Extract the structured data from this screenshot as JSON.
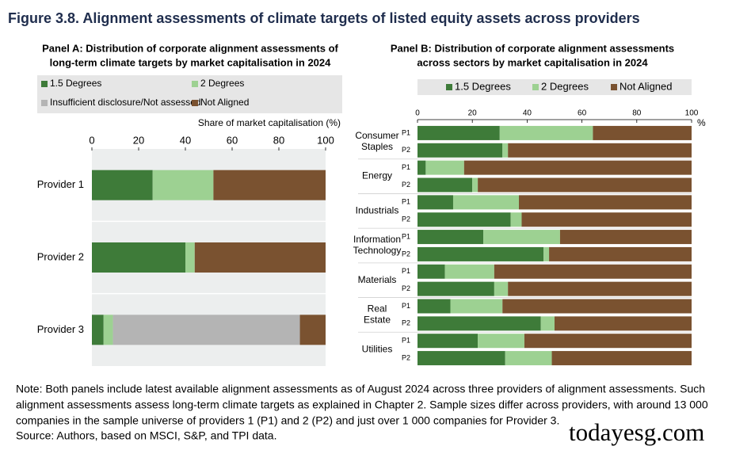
{
  "figure_title": "Figure  3.8. Alignment assessments of climate targets of listed equity assets across providers",
  "chart_data": [
    {
      "type": "bar",
      "orientation": "horizontal",
      "stacked": true,
      "title": [
        "Panel A: Distribution of corporate alignment assessments of",
        "long-term climate targets by market capitalisation in 2024"
      ],
      "xlabel": "Share of market capitalisation (%)",
      "categories": [
        "Provider 1",
        "Provider 2",
        "Provider 3"
      ],
      "series": [
        {
          "name": "1.5 Degrees",
          "color": "#3e7b39",
          "values": [
            26,
            40,
            5
          ]
        },
        {
          "name": "2 Degrees",
          "color": "#9dd192",
          "values": [
            26,
            4,
            4
          ]
        },
        {
          "name": "Insufficient disclosure/Not assessed",
          "color": "#b4b4b4",
          "values": [
            0,
            0,
            80
          ]
        },
        {
          "name": "Not Aligned",
          "color": "#7a5230",
          "values": [
            48,
            56,
            11
          ]
        }
      ],
      "xlim": [
        0,
        100
      ],
      "xticks": [
        0,
        20,
        40,
        60,
        80,
        100
      ],
      "grid": false
    },
    {
      "type": "bar",
      "orientation": "horizontal",
      "stacked": true,
      "title": [
        "Panel B: Distribution of corporate alignment assessments",
        "across sectors by market capitalisation in 2024"
      ],
      "xlabel": "%",
      "groups": [
        [
          "Consumer",
          "Staples"
        ],
        [
          "Energy"
        ],
        [
          "Industrials"
        ],
        [
          "Information",
          "Technology"
        ],
        [
          "Materials"
        ],
        [
          "Real",
          "Estate"
        ],
        [
          "Utilities"
        ]
      ],
      "categories": [
        "P1",
        "P2",
        "P1",
        "P2",
        "P1",
        "P2",
        "P1",
        "P2",
        "P1",
        "P2",
        "P1",
        "P2",
        "P1",
        "P2"
      ],
      "series": [
        {
          "name": "1.5 Degrees",
          "color": "#3e7b39",
          "values": [
            30,
            31,
            3,
            20,
            13,
            34,
            24,
            46,
            10,
            28,
            12,
            45,
            22,
            32
          ]
        },
        {
          "name": "2 Degrees",
          "color": "#9dd192",
          "values": [
            34,
            2,
            14,
            2,
            24,
            4,
            28,
            2,
            18,
            5,
            19,
            5,
            17,
            17
          ]
        },
        {
          "name": "Not Aligned",
          "color": "#7a5230",
          "values": [
            36,
            67,
            83,
            78,
            63,
            62,
            48,
            52,
            72,
            67,
            69,
            50,
            61,
            51
          ]
        }
      ],
      "xlim": [
        0,
        100
      ],
      "xticks": [
        0,
        20,
        40,
        60,
        80,
        100
      ],
      "grid": false
    }
  ],
  "note": [
    "Note: Both panels include latest available alignment assessments as of August 2024 across three providers of alignment assessments. Such",
    "alignment assessments assess long-term climate targets as explained in Chapter 2. Sample sizes differ across providers, with around 13 000",
    "companies in the sample universe of providers 1 (P1) and 2 (P2) and just over 1 000 companies for Provider 3."
  ],
  "source": "Source: Authors, based on MSCI, S&P, and TPI data.",
  "watermark": "todayesg.com"
}
